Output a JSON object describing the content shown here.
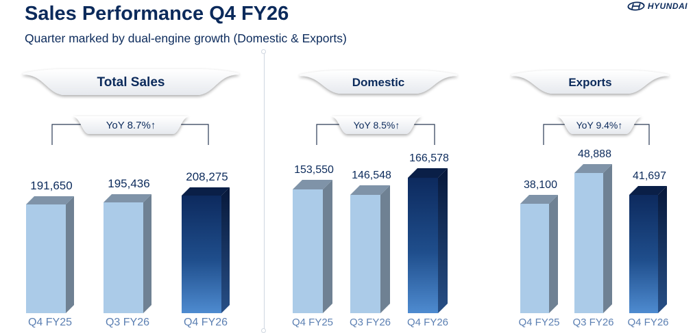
{
  "header": {
    "title": "Sales Performance Q4 FY26",
    "subtitle": "Quarter marked by dual-engine growth (Domestic & Exports)",
    "brand": "HYUNDAI"
  },
  "colors": {
    "navy": "#0b2a5b",
    "light_bar": "#a9c8e6",
    "highlight_bar_top": "#0d2a5e",
    "highlight_bar_bottom": "#4e8bd0",
    "category_label": "#5b7fb2"
  },
  "chart_data": [
    {
      "type": "bar",
      "title": "Total Sales",
      "categories": [
        "Q4 FY25",
        "Q3 FY26",
        "Q4 FY26"
      ],
      "values": [
        191650,
        195436,
        208275
      ],
      "value_labels": [
        "191,650",
        "195,436",
        "208,275"
      ],
      "highlight_index": 2,
      "annotation": "YoY 8.7%↑",
      "ylim": [
        0,
        215000
      ]
    },
    {
      "type": "bar",
      "title": "Domestic",
      "categories": [
        "Q4 FY25",
        "Q3 FY26",
        "Q4 FY26"
      ],
      "values": [
        153550,
        146548,
        166578
      ],
      "value_labels": [
        "153,550",
        "146,548",
        "166,578"
      ],
      "highlight_index": 2,
      "annotation": "YoY 8.5%↑",
      "ylim": [
        0,
        215000
      ]
    },
    {
      "type": "bar",
      "title": "Exports",
      "categories": [
        "Q4 FY25",
        "Q3 FY26",
        "Q4 FY26"
      ],
      "values": [
        38100,
        48888,
        41697
      ],
      "value_labels": [
        "38,100",
        "48,888",
        "41,697"
      ],
      "highlight_index": 2,
      "annotation": "YoY 9.4%↑",
      "ylim": [
        0,
        54000
      ]
    }
  ]
}
